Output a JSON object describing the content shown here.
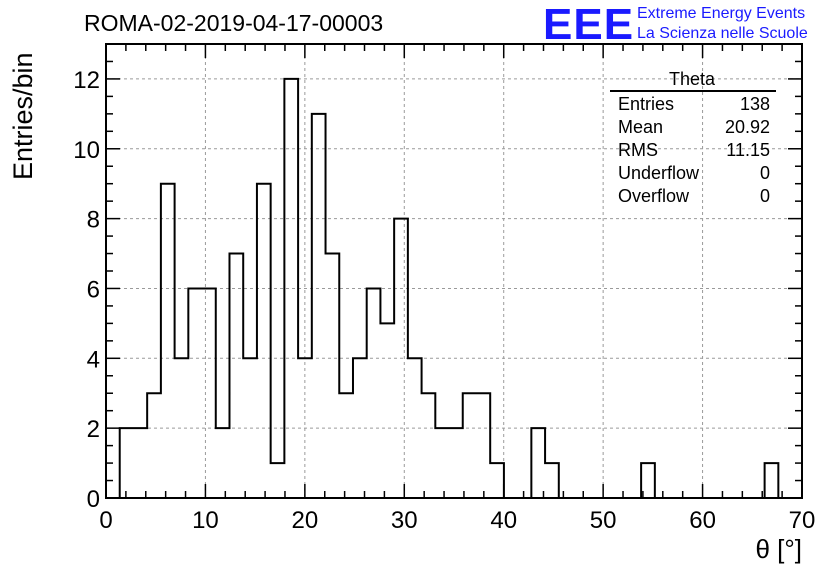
{
  "title": "ROMA-02-2019-04-17-00003",
  "logo": {
    "mark": "EEE",
    "line1": "Extreme Energy Events",
    "line2": "La Scienza nelle Scuole",
    "color": "#1a1aff"
  },
  "stats": {
    "title": "Theta",
    "rows": [
      {
        "label": "Entries",
        "value": "138"
      },
      {
        "label": "Mean",
        "value": "20.92"
      },
      {
        "label": "RMS",
        "value": "11.15"
      },
      {
        "label": "Underflow",
        "value": "0"
      },
      {
        "label": "Overflow",
        "value": "0"
      }
    ]
  },
  "chart_data": {
    "type": "bar",
    "style": "step-histogram",
    "title": "ROMA-02-2019-04-17-00003",
    "xlabel": "θ [°]",
    "ylabel": "Entries/bin",
    "xlim": [
      0,
      70
    ],
    "ylim": [
      0,
      13
    ],
    "x_ticks": [
      0,
      10,
      20,
      30,
      40,
      50,
      60,
      70
    ],
    "y_ticks": [
      0,
      2,
      4,
      6,
      8,
      10,
      12
    ],
    "grid": true,
    "bin_edges": [
      1.38,
      2.76,
      4.14,
      5.52,
      6.9,
      8.28,
      9.66,
      11.04,
      12.42,
      13.8,
      15.18,
      16.56,
      17.94,
      19.32,
      20.7,
      22.08,
      23.46,
      24.84,
      26.22,
      27.6,
      28.98,
      30.36,
      31.74,
      33.12,
      34.5,
      35.88,
      37.26,
      38.64,
      40.02,
      41.4,
      42.78,
      44.16,
      45.54,
      46.92,
      48.3,
      49.68,
      51.06,
      52.44,
      53.82,
      55.2,
      56.58,
      57.96,
      59.34,
      60.72,
      62.1,
      63.48,
      64.86,
      66.24,
      67.62
    ],
    "values": [
      2,
      2,
      3,
      9,
      4,
      6,
      6,
      2,
      7,
      4,
      9,
      1,
      12,
      4,
      11,
      7,
      3,
      4,
      6,
      5,
      8,
      4,
      3,
      2,
      2,
      3,
      3,
      1,
      0,
      0,
      2,
      1,
      0,
      0,
      0,
      0,
      0,
      0,
      1,
      0,
      0,
      0,
      0,
      0,
      0,
      0,
      0,
      1
    ],
    "line_color": "#000000"
  }
}
